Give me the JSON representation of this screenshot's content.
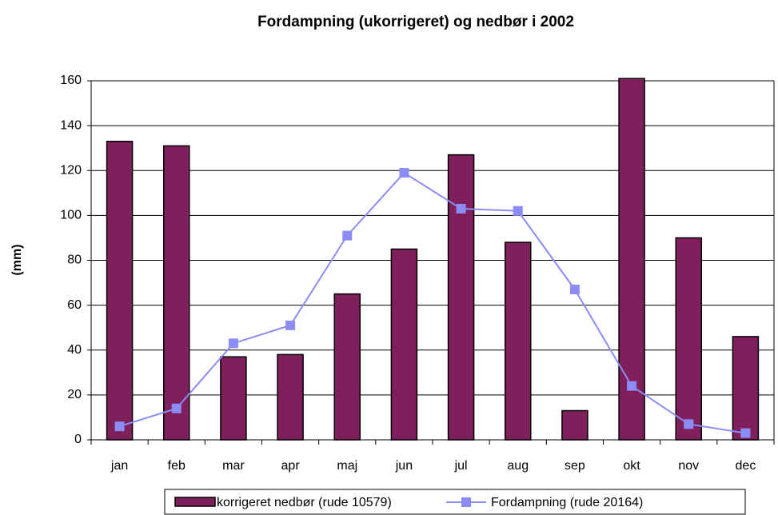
{
  "chart_data": {
    "type": "bar-line",
    "title": "Fordampning (ukorrigeret) og nedbør i 2002",
    "y_label": "(mm)",
    "categories": [
      "jan",
      "feb",
      "mar",
      "apr",
      "maj",
      "jun",
      "jul",
      "aug",
      "sep",
      "okt",
      "nov",
      "dec"
    ],
    "series": [
      {
        "name": "korrigeret nedbør (rude 10579)",
        "type": "bar",
        "color": "#7f1f5b",
        "values": [
          133,
          131,
          37,
          38,
          65,
          85,
          127,
          88,
          13,
          161,
          90,
          46
        ]
      },
      {
        "name": "Fordampning (rude 20164)",
        "type": "line",
        "color": "#8c8cf5",
        "values": [
          6,
          14,
          43,
          51,
          91,
          119,
          103,
          102,
          67,
          24,
          7,
          3
        ]
      }
    ],
    "ylim": [
      0,
      160
    ],
    "yticks": [
      0,
      20,
      40,
      60,
      80,
      100,
      120,
      140,
      160
    ],
    "grid": true
  }
}
